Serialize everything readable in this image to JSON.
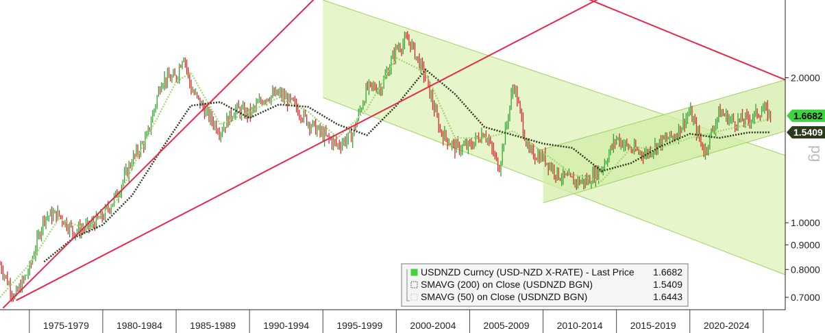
{
  "chart_data": {
    "type": "line",
    "y_scale": "log",
    "ylim": [
      0.66,
      2.9
    ],
    "xlim": [
      1973,
      2026.5
    ],
    "y_ticks": [
      "2.0000",
      "1.0000",
      "0.9000",
      "0.8000",
      "0.7000"
    ],
    "y_tick_values": [
      2.0,
      1.0,
      0.9,
      0.8,
      0.7
    ],
    "y_axis_fragment": "pg",
    "categories": [
      "1975-1979",
      "1980-1984",
      "1985-1989",
      "1990-1994",
      "1995-1999",
      "2000-2004",
      "2005-2009",
      "2010-2014",
      "2015-2019",
      "2020-2024"
    ],
    "last_value_badges": [
      {
        "label": "1.6682",
        "value": 1.6682,
        "bg": "#3fd33f",
        "fg": "#000000"
      },
      {
        "label": "1.5409",
        "value": 1.5409,
        "bg": "#2b3a1c",
        "fg": "#ffffff"
      }
    ],
    "price": {
      "x": [
        1973,
        1974,
        1975,
        1976,
        1977,
        1978,
        1979,
        1980,
        1981,
        1982,
        1983,
        1984,
        1985,
        1985.5,
        1986,
        1987,
        1988,
        1989,
        1990,
        1991,
        1992,
        1993,
        1994,
        1995,
        1996,
        1997,
        1998,
        1999,
        2000,
        2000.8,
        2001,
        2002,
        2003,
        2004,
        2005,
        2006,
        2007,
        2008,
        2009,
        2010,
        2011,
        2012,
        2013,
        2014,
        2015,
        2016,
        2017,
        2018,
        2019,
        2020,
        2021,
        2022,
        2023,
        2024,
        2025,
        2025.5
      ],
      "y": [
        0.82,
        0.7,
        0.8,
        1.03,
        1.04,
        0.96,
        0.98,
        1.03,
        1.15,
        1.35,
        1.5,
        1.98,
        2.0,
        2.25,
        1.9,
        1.7,
        1.55,
        1.72,
        1.68,
        1.82,
        1.85,
        1.76,
        1.62,
        1.52,
        1.45,
        1.52,
        1.9,
        1.92,
        2.3,
        2.4,
        2.35,
        2.0,
        1.55,
        1.43,
        1.44,
        1.55,
        1.3,
        1.95,
        1.4,
        1.37,
        1.26,
        1.22,
        1.22,
        1.3,
        1.5,
        1.42,
        1.39,
        1.47,
        1.52,
        1.7,
        1.4,
        1.7,
        1.62,
        1.64,
        1.72,
        1.6682
      ]
    },
    "sma50": {
      "x": [
        1973,
        1975,
        1977,
        1979,
        1981,
        1983,
        1985,
        1986,
        1988,
        1990,
        1992,
        1994,
        1996,
        1998,
        2000,
        2002,
        2004,
        2006,
        2008,
        2010,
        2012,
        2014,
        2016,
        2018,
        2020,
        2022,
        2024,
        2025.5
      ],
      "y": [
        0.7,
        0.82,
        1.02,
        0.97,
        1.12,
        1.5,
        1.96,
        2.05,
        1.6,
        1.7,
        1.82,
        1.7,
        1.5,
        1.72,
        2.2,
        2.05,
        1.5,
        1.5,
        1.55,
        1.4,
        1.26,
        1.22,
        1.43,
        1.43,
        1.5,
        1.55,
        1.6,
        1.6443
      ]
    },
    "sma200": {
      "x": [
        1976,
        1978,
        1980,
        1982,
        1984,
        1986,
        1988,
        1990,
        1992,
        1994,
        1996,
        1998,
        2000,
        2002,
        2004,
        2006,
        2008,
        2010,
        2012,
        2014,
        2016,
        2018,
        2020,
        2022,
        2024,
        2025.5
      ],
      "y": [
        0.83,
        0.93,
        0.99,
        1.14,
        1.42,
        1.75,
        1.78,
        1.65,
        1.76,
        1.74,
        1.6,
        1.52,
        1.75,
        2.08,
        1.85,
        1.58,
        1.52,
        1.46,
        1.43,
        1.28,
        1.33,
        1.44,
        1.53,
        1.5,
        1.54,
        1.5409
      ]
    },
    "trendlines": [
      {
        "color": "#e8264a",
        "x": [
          1973.2,
          1996.2
        ],
        "y": [
          0.665,
          3.3
        ]
      },
      {
        "color": "#e8264a",
        "x": [
          1974.1,
          2017.2
        ],
        "y": [
          0.69,
          3.3
        ]
      },
      {
        "color": "#e8264a",
        "x": [
          2009.8,
          2026.5
        ],
        "y": [
          3.2,
          1.98
        ]
      }
    ],
    "channels": [
      {
        "fill": "#dff2b8",
        "stroke": "#9fd15e",
        "upper": {
          "x": [
            1995,
            2026.5
          ],
          "y": [
            2.9,
            1.38
          ]
        },
        "lower": {
          "x": [
            1995,
            2026.5
          ],
          "y": [
            1.82,
            0.78
          ]
        }
      },
      {
        "fill": "#d3ecaa",
        "stroke": "#9fd15e",
        "upper": {
          "x": [
            2010,
            2026.5
          ],
          "y": [
            1.42,
            1.98
          ]
        },
        "lower": {
          "x": [
            2010,
            2026.5
          ],
          "y": [
            1.1,
            1.55
          ]
        }
      }
    ],
    "legend": {
      "entries": [
        {
          "label": "USDNZD Curncy (USD-NZD X-RATE)  - Last Price",
          "value": "1.6682",
          "swatch": "#3fd33f"
        },
        {
          "label": "SMAVG (200)  on Close (USDNZD BGN)",
          "value": "1.5409",
          "swatch": "#2b3a1c"
        },
        {
          "label": "SMAVG (50)  on Close (USDNZD BGN)",
          "value": "1.6443",
          "swatch": "#a8d890"
        }
      ]
    },
    "colors": {
      "up": "#2ea22e",
      "down": "#d9262b",
      "sma200": "#2b3a1c",
      "sma50": "#9fd96f",
      "trend": "#e8264a"
    }
  }
}
